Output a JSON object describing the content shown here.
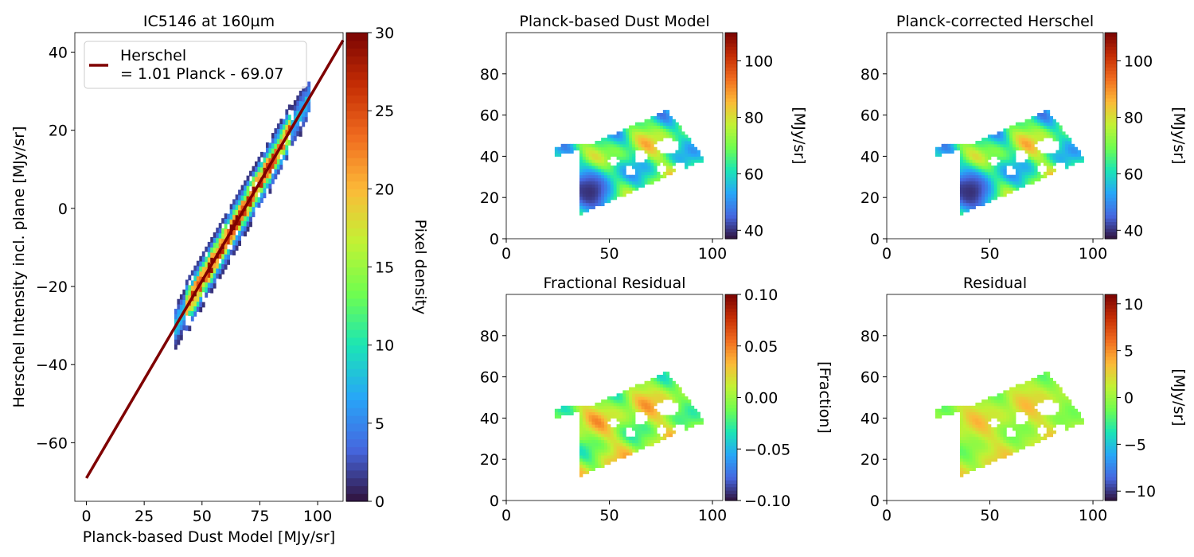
{
  "figure": {
    "background": "#ffffff"
  },
  "chart_data": [
    {
      "id": "scatter",
      "type": "heatmap",
      "title": "IC5146 at 160µm",
      "xlabel": "Planck-based Dust Model [MJy/sr]",
      "ylabel": "Herschel Intensity incl. plane [MJy/sr]",
      "xlim": [
        -5,
        111
      ],
      "ylim": [
        -75,
        45
      ],
      "xticks": [
        0,
        25,
        50,
        75,
        100
      ],
      "yticks": [
        -60,
        -40,
        -20,
        0,
        20,
        40
      ],
      "fit": {
        "slope": 1.01,
        "intercept": -69.07,
        "x_range": [
          0,
          111
        ],
        "color": "#7f0000"
      },
      "legend": {
        "position": "upper-left",
        "line1": "Herschel",
        "line2": "= 1.01 Planck - 69.07"
      },
      "density_band": {
        "x_range": [
          38,
          96
        ],
        "half_width": 4.2
      },
      "colorbar": {
        "label": "Pixel density",
        "range": [
          0,
          30
        ],
        "ticks": [
          0,
          5,
          10,
          15,
          20,
          25,
          30
        ]
      }
    },
    {
      "id": "dust",
      "type": "heatmap",
      "title": "Planck-based Dust Model",
      "xlim": [
        0,
        105
      ],
      "ylim": [
        0,
        100
      ],
      "xticks": [
        0,
        50,
        100
      ],
      "yticks": [
        0,
        20,
        40,
        60,
        80
      ],
      "field": {
        "mean": 68,
        "amp": 22,
        "low_region": [
          40,
          22
        ],
        "low_value": 40
      },
      "colorbar": {
        "label": "[MJy/sr]",
        "range": [
          37,
          110
        ],
        "ticks": [
          40,
          60,
          80,
          100
        ]
      }
    },
    {
      "id": "corrected",
      "type": "heatmap",
      "title": "Planck-corrected Herschel",
      "xlim": [
        0,
        105
      ],
      "ylim": [
        0,
        100
      ],
      "xticks": [
        0,
        50,
        100
      ],
      "yticks": [
        0,
        20,
        40,
        60,
        80
      ],
      "field": {
        "mean": 68,
        "amp": 22,
        "low_region": [
          40,
          22
        ],
        "low_value": 40
      },
      "colorbar": {
        "label": "[MJy/sr]",
        "range": [
          37,
          110
        ],
        "ticks": [
          40,
          60,
          80,
          100
        ]
      }
    },
    {
      "id": "fracres",
      "type": "heatmap",
      "title": "Fractional Residual",
      "xlim": [
        0,
        105
      ],
      "ylim": [
        0,
        100
      ],
      "xticks": [
        0,
        50,
        100
      ],
      "yticks": [
        0,
        20,
        40,
        60,
        80
      ],
      "field": {
        "mean": 0.005,
        "amp": 0.045
      },
      "colorbar": {
        "label": "[Fraction]",
        "range": [
          -0.1,
          0.1
        ],
        "ticks": [
          -0.1,
          -0.05,
          0.0,
          0.05,
          0.1
        ],
        "tick_labels": [
          "−0.10",
          "−0.05",
          "0.00",
          "0.05",
          "0.10"
        ]
      }
    },
    {
      "id": "residual",
      "type": "heatmap",
      "title": "Residual",
      "xlim": [
        0,
        105
      ],
      "ylim": [
        0,
        100
      ],
      "xticks": [
        0,
        50,
        100
      ],
      "yticks": [
        0,
        20,
        40,
        60,
        80
      ],
      "field": {
        "mean": 1,
        "amp": 3
      },
      "colorbar": {
        "label": "[MJy/sr]",
        "range": [
          -11,
          11
        ],
        "ticks": [
          -10,
          -5,
          0,
          5,
          10
        ],
        "tick_labels": [
          "−10",
          "−5",
          "0",
          "5",
          "10"
        ]
      }
    }
  ]
}
